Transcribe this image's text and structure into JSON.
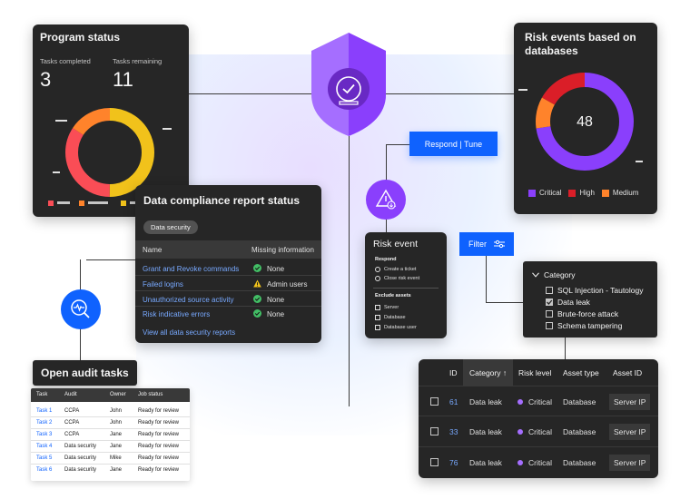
{
  "program_status": {
    "title": "Program status",
    "completed_label": "Tasks completed",
    "completed_value": "3",
    "remaining_label": "Tasks remaining",
    "remaining_value": "11"
  },
  "risk_db": {
    "title": "Risk events based on databases",
    "center_value": "48",
    "legend": [
      {
        "label": "Critical",
        "color": "#8a3ffc"
      },
      {
        "label": "High",
        "color": "#da1e28"
      },
      {
        "label": "Medium",
        "color": "#ff832b"
      }
    ]
  },
  "compliance": {
    "title": "Data compliance report status",
    "tag": "Data security",
    "col_name": "Name",
    "col_missing": "Missing information",
    "rows": [
      {
        "name": "Grant and Revoke commands",
        "missing": "None",
        "status": "ok"
      },
      {
        "name": "Failed logins",
        "missing": "Admin users",
        "status": "warn"
      },
      {
        "name": "Unauthorized source activity",
        "missing": "None",
        "status": "ok"
      },
      {
        "name": "Risk indicative errors",
        "missing": "None",
        "status": "ok"
      }
    ],
    "view_all": "View all data security reports"
  },
  "audit": {
    "title": "Open audit tasks",
    "headers": [
      "Task",
      "Audit",
      "Owner",
      "Job status"
    ],
    "rows": [
      [
        "Task 1",
        "CCPA",
        "John",
        "Ready for review"
      ],
      [
        "Task 2",
        "CCPA",
        "John",
        "Ready for review"
      ],
      [
        "Task 3",
        "CCPA",
        "Jane",
        "Ready for review"
      ],
      [
        "Task 4",
        "Data security",
        "Jane",
        "Ready for review"
      ],
      [
        "Task 5",
        "Data security",
        "Mike",
        "Ready for review"
      ],
      [
        "Task 6",
        "Data security",
        "Jane",
        "Ready for review"
      ]
    ]
  },
  "respond_button": "Respond | Tune",
  "risk_event": {
    "title": "Risk event",
    "respond_label": "Respond",
    "respond_options": [
      "Create a ticket",
      "Close risk event"
    ],
    "exclude_label": "Exclude assets",
    "exclude_options": [
      "Server",
      "Database",
      "Database user"
    ]
  },
  "filter_button": "Filter",
  "category": {
    "title": "Category",
    "options": [
      {
        "label": "SQL Injection - Tautology",
        "checked": false
      },
      {
        "label": "Data leak",
        "checked": true
      },
      {
        "label": "Brute-force attack",
        "checked": false
      },
      {
        "label": "Schema tampering",
        "checked": false
      }
    ]
  },
  "risk_table": {
    "headers": [
      "ID",
      "Category",
      "Risk level",
      "Asset type",
      "Asset ID"
    ],
    "sort_indicator": "↑",
    "rows": [
      [
        "61",
        "Data leak",
        "Critical",
        "Database",
        "Server IP"
      ],
      [
        "33",
        "Data leak",
        "Critical",
        "Database",
        "Server IP"
      ],
      [
        "76",
        "Data leak",
        "Critical",
        "Database",
        "Server IP"
      ]
    ]
  }
}
